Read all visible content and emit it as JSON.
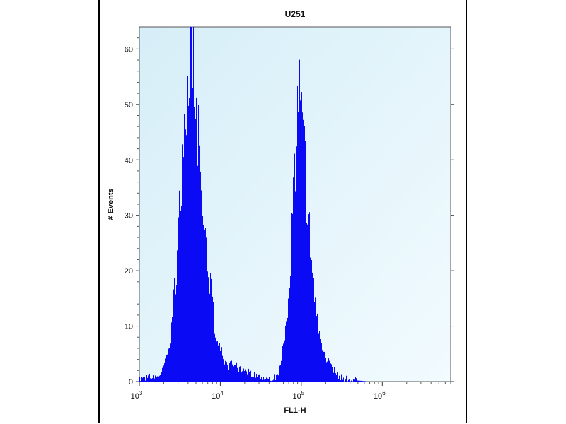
{
  "chart_data": {
    "type": "area",
    "title": "U251",
    "xlabel": "FL1-H",
    "ylabel": "# Events",
    "x_scale": "log",
    "xlim": [
      1000,
      7000000
    ],
    "ylim": [
      0,
      64
    ],
    "y_ticks": [
      0,
      10,
      20,
      30,
      40,
      50,
      60
    ],
    "x_ticks": [
      {
        "value": 1000,
        "base": "10",
        "exp": "3"
      },
      {
        "value": 10000,
        "base": "10",
        "exp": "4"
      },
      {
        "value": 100000,
        "base": "10",
        "exp": "5"
      },
      {
        "value": 1000000,
        "base": "10",
        "exp": "6"
      }
    ],
    "grid": false,
    "colors": {
      "fill": "#0a0af5",
      "background": "#e4f5fb",
      "frame": "#000000"
    },
    "series": [
      {
        "x": [
          1000,
          1500,
          1800,
          2000,
          2300,
          2600,
          2900,
          3200,
          3500,
          3800,
          4100,
          4400,
          4700,
          5000,
          5500,
          6000,
          6800,
          7600,
          8500,
          9500,
          10500,
          12000,
          14000,
          17000,
          20000,
          25000,
          30000,
          36000,
          42000,
          48000,
          55000,
          60000,
          65000,
          70000,
          75000,
          80000,
          85000,
          90000,
          95000,
          100000,
          110000,
          120000,
          135000,
          150000,
          170000,
          190000,
          210000,
          240000,
          270000,
          300000,
          400000,
          700000,
          1000000
        ],
        "y": [
          0.5,
          1,
          1.5,
          3,
          7,
          14,
          24,
          37,
          48,
          56,
          62,
          63,
          58,
          50,
          41,
          32,
          24,
          17,
          11,
          7,
          5,
          3.5,
          3,
          2.5,
          2,
          1.5,
          1,
          0.5,
          0.5,
          1,
          3,
          7,
          12,
          19,
          28,
          38,
          46,
          52,
          54,
          50,
          42,
          32,
          21,
          14,
          9,
          6,
          4,
          2.5,
          1.5,
          0.8,
          0.3,
          0,
          0
        ]
      }
    ]
  }
}
